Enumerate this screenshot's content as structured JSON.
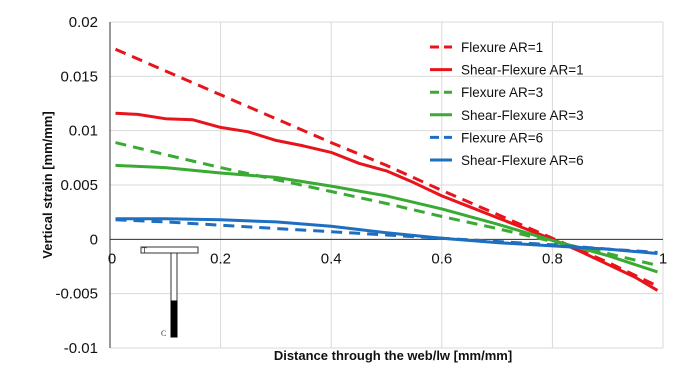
{
  "chart_data": {
    "type": "line",
    "title": "",
    "xlabel": "Distance through the web/lw [mm/mm]",
    "ylabel": "Vertical strain [mm/mm]",
    "xlim": [
      0,
      1
    ],
    "ylim": [
      -0.01,
      0.02
    ],
    "x_ticks": [
      0,
      0.2,
      0.4,
      0.6,
      0.8,
      1
    ],
    "x_tick_labels": [
      "0",
      "0.2",
      "0.4",
      "0.6",
      "0.8",
      "1"
    ],
    "y_ticks": [
      -0.01,
      -0.005,
      0,
      0.005,
      0.01,
      0.015,
      0.02
    ],
    "y_tick_labels": [
      "-0.01",
      "-0.005",
      "0",
      "0.005",
      "0.01",
      "0.015",
      "0.02"
    ],
    "grid": true,
    "legend_position": "top-right",
    "series": [
      {
        "name": "Flexure AR=1",
        "color": "#e8141c",
        "dash": true,
        "points": [
          [
            0.01,
            0.0175
          ],
          [
            0.1,
            0.0155
          ],
          [
            0.2,
            0.0133
          ],
          [
            0.3,
            0.0111
          ],
          [
            0.4,
            0.0089
          ],
          [
            0.5,
            0.0068
          ],
          [
            0.6,
            0.0045
          ],
          [
            0.7,
            0.0023
          ],
          [
            0.8,
            0.0001
          ],
          [
            0.9,
            -0.0021
          ],
          [
            0.99,
            -0.0043
          ]
        ]
      },
      {
        "name": "Shear-Flexure AR=1",
        "color": "#e8141c",
        "dash": false,
        "points": [
          [
            0.01,
            0.0116
          ],
          [
            0.05,
            0.0115
          ],
          [
            0.1,
            0.0111
          ],
          [
            0.15,
            0.011
          ],
          [
            0.2,
            0.0103
          ],
          [
            0.25,
            0.0099
          ],
          [
            0.3,
            0.0091
          ],
          [
            0.35,
            0.0086
          ],
          [
            0.4,
            0.008
          ],
          [
            0.45,
            0.007
          ],
          [
            0.5,
            0.0063
          ],
          [
            0.55,
            0.0052
          ],
          [
            0.6,
            0.004
          ],
          [
            0.65,
            0.003
          ],
          [
            0.7,
            0.002
          ],
          [
            0.75,
            0.001
          ],
          [
            0.8,
            0.0
          ],
          [
            0.85,
            -0.0011
          ],
          [
            0.9,
            -0.0023
          ],
          [
            0.95,
            -0.0035
          ],
          [
            0.99,
            -0.0047
          ]
        ]
      },
      {
        "name": "Flexure AR=3",
        "color": "#3aaa35",
        "dash": true,
        "points": [
          [
            0.01,
            0.0089
          ],
          [
            0.1,
            0.0078
          ],
          [
            0.2,
            0.0066
          ],
          [
            0.3,
            0.0055
          ],
          [
            0.4,
            0.0044
          ],
          [
            0.5,
            0.0033
          ],
          [
            0.6,
            0.0021
          ],
          [
            0.7,
            0.001
          ],
          [
            0.8,
            -0.0002
          ],
          [
            0.9,
            -0.0013
          ],
          [
            0.99,
            -0.0024
          ]
        ]
      },
      {
        "name": "Shear-Flexure AR=3",
        "color": "#3aaa35",
        "dash": false,
        "points": [
          [
            0.01,
            0.0068
          ],
          [
            0.1,
            0.0066
          ],
          [
            0.2,
            0.0061
          ],
          [
            0.3,
            0.0057
          ],
          [
            0.4,
            0.0049
          ],
          [
            0.5,
            0.004
          ],
          [
            0.6,
            0.0028
          ],
          [
            0.7,
            0.0014
          ],
          [
            0.8,
            -0.0001
          ],
          [
            0.9,
            -0.0015
          ],
          [
            0.99,
            -0.003
          ]
        ]
      },
      {
        "name": "Flexure AR=6",
        "color": "#1f6fc1",
        "dash": true,
        "points": [
          [
            0.01,
            0.0018
          ],
          [
            0.1,
            0.0016
          ],
          [
            0.2,
            0.0013
          ],
          [
            0.3,
            0.001
          ],
          [
            0.4,
            0.0007
          ],
          [
            0.5,
            0.0004
          ],
          [
            0.6,
            0.0001
          ],
          [
            0.7,
            -0.0002
          ],
          [
            0.8,
            -0.0005
          ],
          [
            0.9,
            -0.0009
          ],
          [
            0.99,
            -0.0012
          ]
        ]
      },
      {
        "name": "Shear-Flexure AR=6",
        "color": "#1f6fc1",
        "dash": false,
        "points": [
          [
            0.01,
            0.0019
          ],
          [
            0.1,
            0.0019
          ],
          [
            0.2,
            0.0018
          ],
          [
            0.3,
            0.0016
          ],
          [
            0.4,
            0.0012
          ],
          [
            0.5,
            0.0006
          ],
          [
            0.6,
            0.0001
          ],
          [
            0.7,
            -0.0003
          ],
          [
            0.8,
            -0.0006
          ],
          [
            0.9,
            -0.0009
          ],
          [
            0.99,
            -0.0013
          ]
        ]
      }
    ],
    "inset": {
      "top_label": "T",
      "bottom_label": "C"
    }
  }
}
